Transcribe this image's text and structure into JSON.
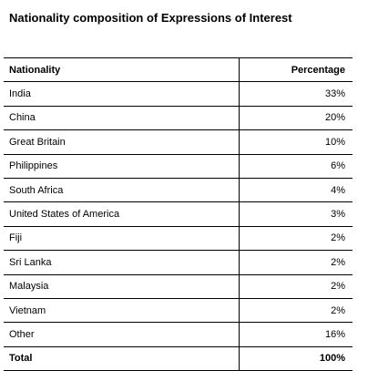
{
  "title": "Nationality composition of Expressions of Interest",
  "table": {
    "headers": [
      "Nationality",
      "Percentage"
    ],
    "rows": [
      [
        "India",
        "33%"
      ],
      [
        "China",
        "20%"
      ],
      [
        "Great Britain",
        "10%"
      ],
      [
        "Philippines",
        "6%"
      ],
      [
        "South Africa",
        "4%"
      ],
      [
        "United States of America",
        "3%"
      ],
      [
        "Fiji",
        "2%"
      ],
      [
        "Sri Lanka",
        "2%"
      ],
      [
        "Malaysia",
        "2%"
      ],
      [
        "Vietnam",
        "2%"
      ],
      [
        "Other",
        "16%"
      ]
    ],
    "total": [
      "Total",
      "100%"
    ]
  }
}
